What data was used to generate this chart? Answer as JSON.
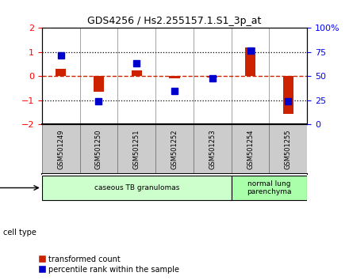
{
  "title": "GDS4256 / Hs2.255157.1.S1_3p_at",
  "samples": [
    "GSM501249",
    "GSM501250",
    "GSM501251",
    "GSM501252",
    "GSM501253",
    "GSM501254",
    "GSM501255"
  ],
  "red_bars": [
    0.3,
    -0.65,
    0.25,
    -0.07,
    -0.06,
    1.18,
    -1.55
  ],
  "blue_squares": [
    0.85,
    -1.05,
    0.55,
    -0.6,
    -0.1,
    1.05,
    -1.05
  ],
  "ylim": [
    -2,
    2
  ],
  "yticks_left": [
    -2,
    -1,
    0,
    1,
    2
  ],
  "yticks_right_vals": [
    -2,
    -1,
    0,
    1,
    2
  ],
  "yticks_right_labels": [
    "0",
    "25",
    "50",
    "75",
    "100%"
  ],
  "cell_type_groups": [
    {
      "label": "caseous TB granulomas",
      "span": [
        0,
        5
      ],
      "color": "#ccffcc"
    },
    {
      "label": "normal lung\nparenchyma",
      "span": [
        5,
        7
      ],
      "color": "#aaffaa"
    }
  ],
  "bar_color": "#cc2200",
  "square_color": "#0000cc",
  "bg_color": "#ffffff",
  "legend_red_label": "transformed count",
  "legend_blue_label": "percentile rank within the sample",
  "cell_type_label": "cell type"
}
